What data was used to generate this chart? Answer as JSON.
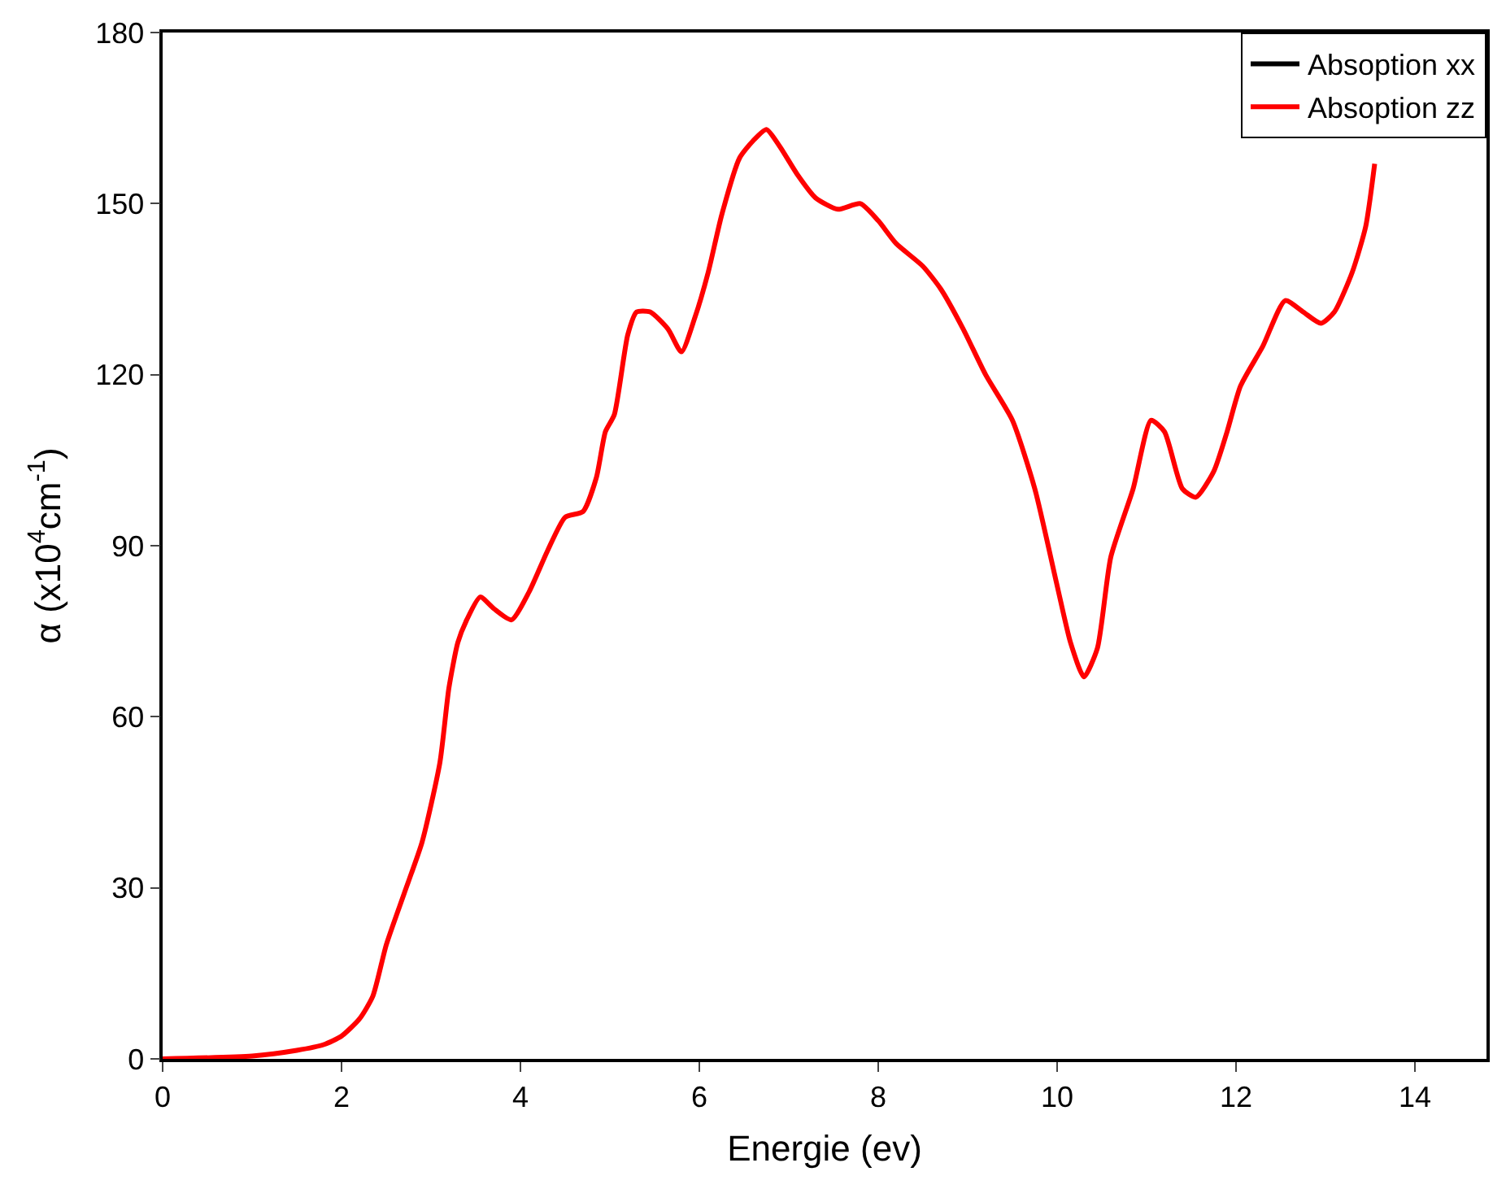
{
  "chart_data": {
    "type": "line",
    "xlabel": "Energie (ev)",
    "ylabel": "α (x10$^{4}$cm$^{-1}$)",
    "x": [
      0,
      1.0,
      1.5,
      1.8,
      2.0,
      2.2,
      2.35,
      2.5,
      2.7,
      2.9,
      3.1,
      3.2,
      3.3,
      3.4,
      3.55,
      3.7,
      3.9,
      4.1,
      4.3,
      4.5,
      4.7,
      4.85,
      4.95,
      5.05,
      5.2,
      5.3,
      5.45,
      5.65,
      5.8,
      5.95,
      6.1,
      6.25,
      6.45,
      6.6,
      6.75,
      6.9,
      7.1,
      7.3,
      7.55,
      7.8,
      8.0,
      8.2,
      8.5,
      8.7,
      8.95,
      9.2,
      9.5,
      9.75,
      10.0,
      10.15,
      10.3,
      10.45,
      10.6,
      10.85,
      11.05,
      11.2,
      11.4,
      11.55,
      11.75,
      11.9,
      12.05,
      12.3,
      12.55,
      12.75,
      12.95,
      13.1,
      13.3,
      13.45,
      13.55
    ],
    "series": [
      {
        "name": "Absoption xx",
        "color": "#000000",
        "values": [
          null,
          null,
          null,
          null,
          null,
          null,
          null,
          null,
          null,
          null,
          null,
          null,
          null,
          null,
          null,
          null,
          null,
          null,
          null,
          null,
          null,
          null,
          null,
          null,
          null,
          null,
          null,
          null,
          null,
          null,
          null,
          null,
          null,
          null,
          null,
          null,
          null,
          null,
          null,
          null,
          null,
          null,
          null,
          null,
          null,
          null,
          null,
          null,
          null,
          null,
          null,
          null,
          null,
          null,
          null,
          null,
          null,
          null,
          null,
          null,
          null,
          null,
          null,
          null,
          null,
          null,
          null,
          null,
          null
        ]
      },
      {
        "name": "Absoption zz",
        "color": "#ff0000",
        "values": [
          0,
          0.5,
          1.5,
          2.5,
          4,
          7,
          11,
          20,
          29,
          38,
          52,
          65,
          73,
          77,
          81,
          79,
          77,
          82,
          89,
          95,
          96,
          102,
          110,
          113,
          127,
          131,
          131,
          128,
          124,
          130,
          138,
          148,
          158,
          161,
          163,
          160,
          155,
          151,
          149,
          150,
          147,
          143,
          139,
          135,
          128,
          120,
          112,
          100,
          83,
          73,
          67,
          72,
          88,
          100,
          112,
          110,
          100,
          98.5,
          103,
          110,
          118,
          125,
          133,
          131,
          129,
          131,
          138,
          146,
          157
        ]
      }
    ],
    "xlim": [
      0,
      14.8
    ],
    "xticks": [
      0,
      2,
      4,
      6,
      8,
      10,
      12,
      14
    ],
    "ylim": [
      0,
      180
    ],
    "yticks": [
      0,
      30,
      60,
      90,
      120,
      150,
      180
    ],
    "legend": "top right",
    "marker": "none",
    "line_style": "solid"
  }
}
